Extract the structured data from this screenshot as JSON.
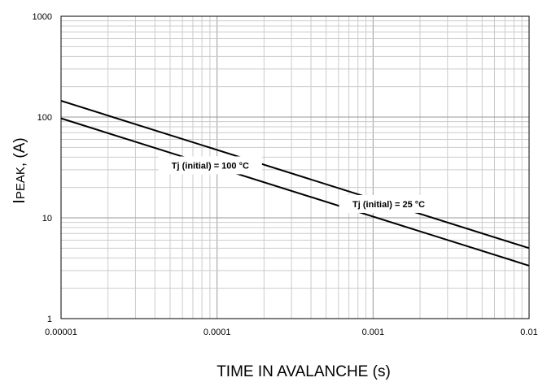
{
  "chart_data": {
    "type": "line",
    "xscale": "log",
    "yscale": "log",
    "xlim": [
      1e-05,
      0.01
    ],
    "ylim": [
      1,
      1000
    ],
    "grid": true,
    "xlabel": "TIME IN AVALANCHE (s)",
    "ylabel": {
      "main": "I",
      "sub": "PEAK",
      "rest": ", (A)"
    },
    "x_ticks": [
      "0.00001",
      "0.0001",
      "0.001",
      "0.01"
    ],
    "y_ticks": [
      "1",
      "10",
      "100",
      "1000"
    ],
    "series": [
      {
        "name": "Tj (initial) = 25 °C",
        "x": [
          1e-05,
          0.01
        ],
        "y": [
          145,
          5
        ]
      },
      {
        "name": "Tj (initial) = 100 °C",
        "x": [
          1e-05,
          0.01
        ],
        "y": [
          97,
          3.35
        ]
      }
    ],
    "legend": "inline annotations"
  }
}
